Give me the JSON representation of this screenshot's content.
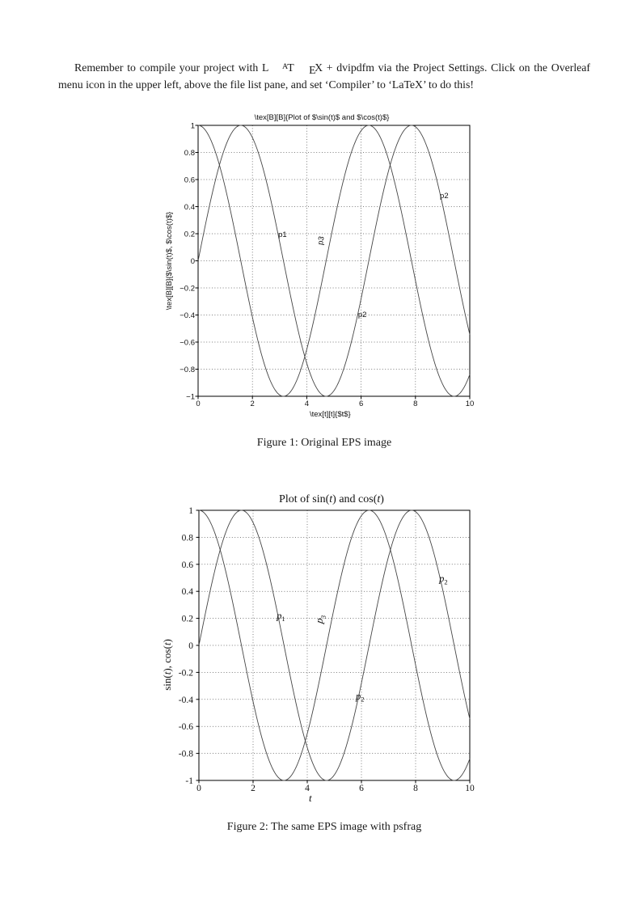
{
  "page": {
    "intro": {
      "before_logo": "Remember to compile your project with ",
      "logo": {
        "l": "L",
        "a": "A",
        "t": "T",
        "e": "E",
        "x": "X"
      },
      "after_logo": " + dvipdfm via the Project Settings. Click on the Overleaf menu icon in the upper left, above the file list pane, and set ‘Compiler’ to ‘LaTeX’ to do this!"
    },
    "figures": [
      {
        "caption": "Figure 1: Original EPS image"
      },
      {
        "caption": "Figure 2: The same EPS image with psfrag"
      }
    ]
  },
  "chart_data": [
    {
      "type": "line",
      "title": [
        {
          "t": "\\tex[B][B]{Plot of $\\sin(t)$ and $\\cos(t)$}"
        }
      ],
      "xlabel": [
        {
          "t": "\\tex[t][t]{$t$}"
        }
      ],
      "ylabel": [
        {
          "t": "\\tex[B][B]{$\\sin(t)$, $\\cos(t)$}"
        }
      ],
      "x_range": [
        0,
        10
      ],
      "ylim": [
        -1,
        1
      ],
      "grid": true,
      "legend": null,
      "font_style": "sans",
      "x_ticks": [
        {
          "label": "0",
          "v": 0
        },
        {
          "label": "2",
          "v": 2
        },
        {
          "label": "4",
          "v": 4
        },
        {
          "label": "6",
          "v": 6
        },
        {
          "label": "8",
          "v": 8
        },
        {
          "label": "10",
          "v": 10
        }
      ],
      "y_ticks": [
        {
          "label": "1",
          "v": 1
        },
        {
          "label": "0.8",
          "v": 0.8
        },
        {
          "label": "0.6",
          "v": 0.6
        },
        {
          "label": "0.4",
          "v": 0.4
        },
        {
          "label": "0.2",
          "v": 0.2
        },
        {
          "label": "0",
          "v": 0
        },
        {
          "label": "−0.2",
          "v": -0.2
        },
        {
          "label": "−0.4",
          "v": -0.4
        },
        {
          "label": "−0.6",
          "v": -0.6
        },
        {
          "label": "−0.8",
          "v": -0.8
        },
        {
          "label": "−1",
          "v": -1
        }
      ],
      "series": [
        {
          "name": "sin(t)",
          "fn": "sin",
          "sample_step": 0.04
        },
        {
          "name": "cos(t)",
          "fn": "cos",
          "sample_step": 0.04
        }
      ],
      "annotations": [
        {
          "parts": [
            {
              "t": "p1"
            }
          ],
          "x": 2.95,
          "y": 0.175,
          "rotate": 0
        },
        {
          "parts": [
            {
              "t": "p3"
            }
          ],
          "x": 4.58,
          "y": 0.115,
          "rotate": -80
        },
        {
          "parts": [
            {
              "t": "p2"
            }
          ],
          "x": 5.89,
          "y": -0.415,
          "rotate": 0
        },
        {
          "parts": [
            {
              "t": "p2"
            }
          ],
          "x": 8.9,
          "y": 0.463,
          "rotate": 0
        }
      ]
    },
    {
      "type": "line",
      "title": [
        {
          "t": "Plot of sin("
        },
        {
          "t": "t",
          "i": true
        },
        {
          "t": ") and cos("
        },
        {
          "t": "t",
          "i": true
        },
        {
          "t": ")"
        }
      ],
      "xlabel": [
        {
          "t": "t",
          "i": true
        }
      ],
      "ylabel": [
        {
          "t": "sin("
        },
        {
          "t": "t",
          "i": true
        },
        {
          "t": "), cos("
        },
        {
          "t": "t",
          "i": true
        },
        {
          "t": ")"
        }
      ],
      "x_range": [
        0,
        10
      ],
      "ylim": [
        -1,
        1
      ],
      "grid": true,
      "legend": null,
      "font_style": "serif",
      "x_ticks": [
        {
          "label": "0",
          "v": 0
        },
        {
          "label": "2",
          "v": 2
        },
        {
          "label": "4",
          "v": 4
        },
        {
          "label": "6",
          "v": 6
        },
        {
          "label": "8",
          "v": 8
        },
        {
          "label": "10",
          "v": 10
        }
      ],
      "y_ticks": [
        {
          "label": "1",
          "v": 1
        },
        {
          "label": "0.8",
          "v": 0.8
        },
        {
          "label": "0.6",
          "v": 0.6
        },
        {
          "label": "0.4",
          "v": 0.4
        },
        {
          "label": "0.2",
          "v": 0.2
        },
        {
          "label": "0",
          "v": 0
        },
        {
          "label": "-0.2",
          "v": -0.2
        },
        {
          "label": "-0.4",
          "v": -0.4
        },
        {
          "label": "-0.6",
          "v": -0.6
        },
        {
          "label": "-0.8",
          "v": -0.8
        },
        {
          "label": "-1",
          "v": -1
        }
      ],
      "series": [
        {
          "name": "sin(t)",
          "fn": "sin",
          "sample_step": 0.04
        },
        {
          "name": "cos(t)",
          "fn": "cos",
          "sample_step": 0.04
        }
      ],
      "annotations": [
        {
          "parts": [
            {
              "t": "p",
              "i": true
            },
            {
              "t": "1",
              "sub": true
            }
          ],
          "x": 2.87,
          "y": 0.195,
          "rotate": 0
        },
        {
          "parts": [
            {
              "t": "p",
              "i": true
            },
            {
              "t": "3",
              "sub": true
            }
          ],
          "x": 4.55,
          "y": 0.16,
          "rotate": -80
        },
        {
          "parts": [
            {
              "t": "p",
              "i": true
            },
            {
              "t": "2",
              "sub": true
            }
          ],
          "x": 5.79,
          "y": -0.4,
          "rotate": 0
        },
        {
          "parts": [
            {
              "t": "p",
              "i": true
            },
            {
              "t": "2",
              "sub": true
            }
          ],
          "x": 8.87,
          "y": 0.47,
          "rotate": 0
        }
      ]
    }
  ]
}
